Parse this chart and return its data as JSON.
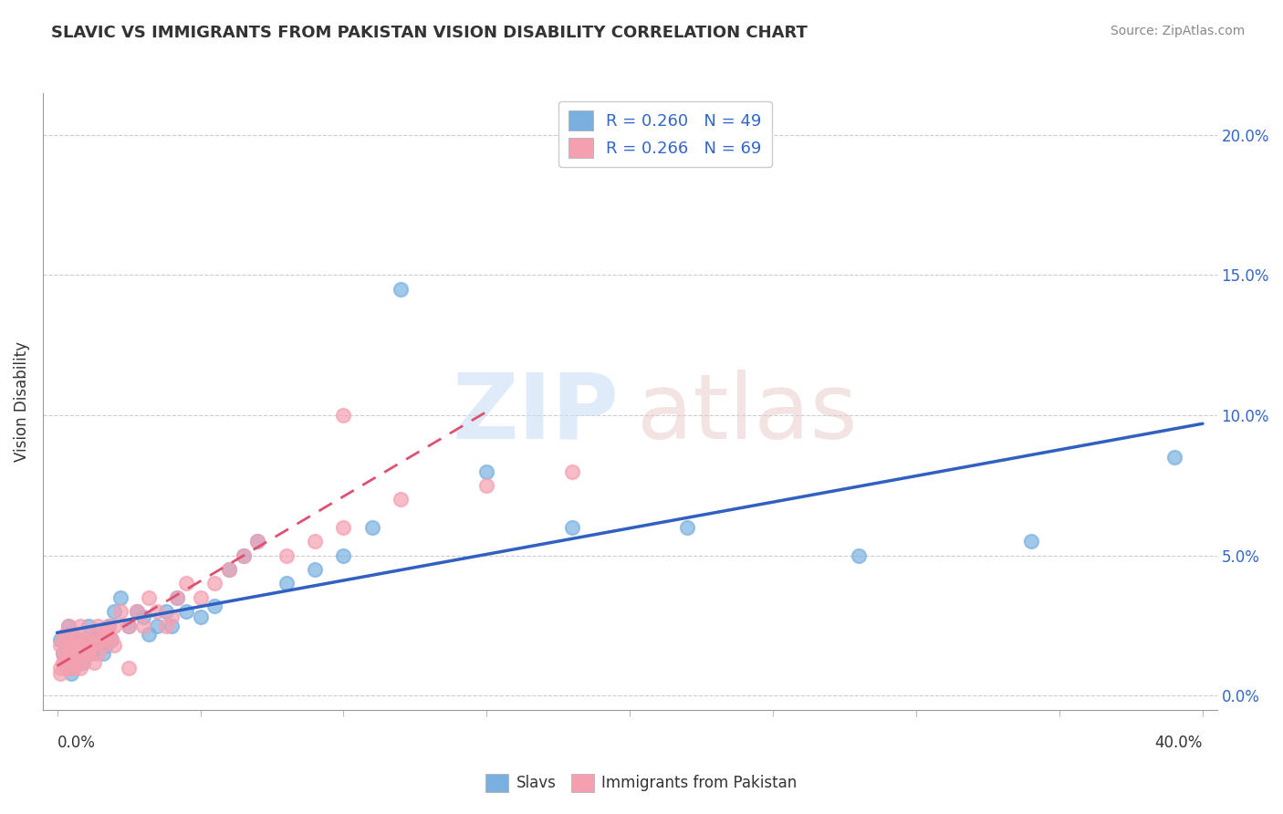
{
  "title": "SLAVIC VS IMMIGRANTS FROM PAKISTAN VISION DISABILITY CORRELATION CHART",
  "source": "Source: ZipAtlas.com",
  "ylabel": "Vision Disability",
  "ylabel_right_vals": [
    0.0,
    0.05,
    0.1,
    0.15,
    0.2
  ],
  "xlim": [
    0.0,
    0.4
  ],
  "ylim": [
    -0.005,
    0.215
  ],
  "legend1_label": "R = 0.260   N = 49",
  "legend2_label": "R = 0.266   N = 69",
  "slavs_color": "#7ab0e0",
  "pakistan_color": "#f4a0b0",
  "trend_slavs_color": "#3060c0",
  "trend_pakistan_color": "#e05070",
  "slavs_points_x": [
    0.001,
    0.002,
    0.003,
    0.003,
    0.004,
    0.004,
    0.005,
    0.005,
    0.006,
    0.007,
    0.008,
    0.009,
    0.01,
    0.011,
    0.012,
    0.013,
    0.014,
    0.015,
    0.016,
    0.017,
    0.018,
    0.019,
    0.02,
    0.022,
    0.025,
    0.028,
    0.03,
    0.032,
    0.035,
    0.038,
    0.04,
    0.042,
    0.045,
    0.05,
    0.055,
    0.06,
    0.065,
    0.07,
    0.08,
    0.09,
    0.1,
    0.11,
    0.12,
    0.15,
    0.18,
    0.22,
    0.28,
    0.34,
    0.39
  ],
  "slavs_points_y": [
    0.02,
    0.015,
    0.018,
    0.012,
    0.01,
    0.025,
    0.008,
    0.022,
    0.018,
    0.015,
    0.02,
    0.012,
    0.018,
    0.025,
    0.015,
    0.02,
    0.018,
    0.022,
    0.015,
    0.018,
    0.025,
    0.02,
    0.03,
    0.035,
    0.025,
    0.03,
    0.028,
    0.022,
    0.025,
    0.03,
    0.025,
    0.035,
    0.03,
    0.028,
    0.032,
    0.045,
    0.05,
    0.055,
    0.04,
    0.045,
    0.05,
    0.06,
    0.145,
    0.08,
    0.06,
    0.06,
    0.05,
    0.055,
    0.085
  ],
  "pakistan_points_x": [
    0.001,
    0.001,
    0.002,
    0.002,
    0.003,
    0.003,
    0.004,
    0.004,
    0.005,
    0.005,
    0.006,
    0.006,
    0.007,
    0.007,
    0.008,
    0.008,
    0.009,
    0.01,
    0.011,
    0.012,
    0.013,
    0.014,
    0.015,
    0.016,
    0.017,
    0.018,
    0.019,
    0.02,
    0.022,
    0.025,
    0.028,
    0.03,
    0.032,
    0.035,
    0.038,
    0.04,
    0.042,
    0.045,
    0.05,
    0.055,
    0.06,
    0.065,
    0.07,
    0.08,
    0.09,
    0.1,
    0.12,
    0.15,
    0.18,
    0.22,
    0.001,
    0.002,
    0.003,
    0.004,
    0.005,
    0.006,
    0.007,
    0.008,
    0.009,
    0.01,
    0.011,
    0.012,
    0.013,
    0.014,
    0.016,
    0.018,
    0.02,
    0.025,
    0.1
  ],
  "pakistan_points_y": [
    0.01,
    0.018,
    0.015,
    0.02,
    0.012,
    0.022,
    0.018,
    0.025,
    0.015,
    0.01,
    0.018,
    0.022,
    0.015,
    0.02,
    0.018,
    0.025,
    0.012,
    0.015,
    0.02,
    0.018,
    0.022,
    0.025,
    0.02,
    0.018,
    0.022,
    0.025,
    0.02,
    0.025,
    0.03,
    0.025,
    0.03,
    0.025,
    0.035,
    0.03,
    0.025,
    0.028,
    0.035,
    0.04,
    0.035,
    0.04,
    0.045,
    0.05,
    0.055,
    0.05,
    0.055,
    0.06,
    0.07,
    0.075,
    0.08,
    0.205,
    0.008,
    0.012,
    0.01,
    0.015,
    0.012,
    0.01,
    0.018,
    0.01,
    0.015,
    0.02,
    0.015,
    0.018,
    0.012,
    0.015,
    0.02,
    0.022,
    0.018,
    0.01,
    0.1
  ]
}
